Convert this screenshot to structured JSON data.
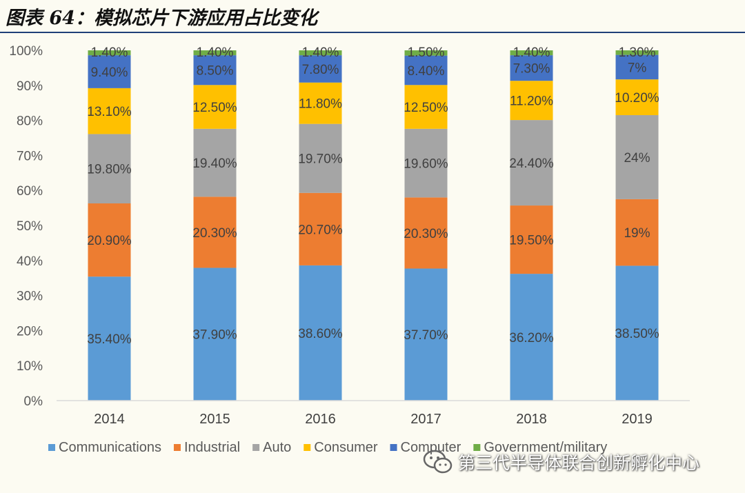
{
  "title": "图表 64：模拟芯片下游应用占比变化",
  "watermark": "第三代半导体联合创新孵化中心",
  "chart_data": {
    "type": "bar",
    "stacked": true,
    "categories": [
      "2014",
      "2015",
      "2016",
      "2017",
      "2018",
      "2019"
    ],
    "series": [
      {
        "name": "Communications",
        "color": "#5b9bd5",
        "values": [
          35.4,
          37.9,
          38.6,
          37.7,
          36.2,
          38.5
        ],
        "labels": [
          "35.40%",
          "37.90%",
          "38.60%",
          "37.70%",
          "36.20%",
          "38.50%"
        ]
      },
      {
        "name": "Industrial",
        "color": "#ed7d31",
        "values": [
          20.9,
          20.3,
          20.7,
          20.3,
          19.5,
          19.0
        ],
        "labels": [
          "20.90%",
          "20.30%",
          "20.70%",
          "20.30%",
          "19.50%",
          "19%"
        ]
      },
      {
        "name": "Auto",
        "color": "#a5a5a5",
        "values": [
          19.8,
          19.4,
          19.7,
          19.6,
          24.4,
          24.0
        ],
        "labels": [
          "19.80%",
          "19.40%",
          "19.70%",
          "19.60%",
          "24.40%",
          "24%"
        ]
      },
      {
        "name": "Consumer",
        "color": "#ffc000",
        "values": [
          13.1,
          12.5,
          11.8,
          12.5,
          11.2,
          10.2
        ],
        "labels": [
          "13.10%",
          "12.50%",
          "11.80%",
          "12.50%",
          "11.20%",
          "10.20%"
        ]
      },
      {
        "name": "Computer",
        "color": "#4472c4",
        "values": [
          9.4,
          8.5,
          7.8,
          8.4,
          7.3,
          7.0
        ],
        "labels": [
          "9.40%",
          "8.50%",
          "7.80%",
          "8.40%",
          "7.30%",
          "7%"
        ]
      },
      {
        "name": "Government/military",
        "color": "#70ad47",
        "values": [
          1.4,
          1.4,
          1.4,
          1.5,
          1.4,
          1.3
        ],
        "labels": [
          "1.40%",
          "1.40%",
          "1.40%",
          "1.50%",
          "1.40%",
          "1.30%"
        ]
      }
    ],
    "ylim": [
      0,
      100
    ],
    "yticks": [
      "0%",
      "10%",
      "20%",
      "30%",
      "40%",
      "50%",
      "60%",
      "70%",
      "80%",
      "90%",
      "100%"
    ],
    "grid": false,
    "legend": "bottom"
  }
}
